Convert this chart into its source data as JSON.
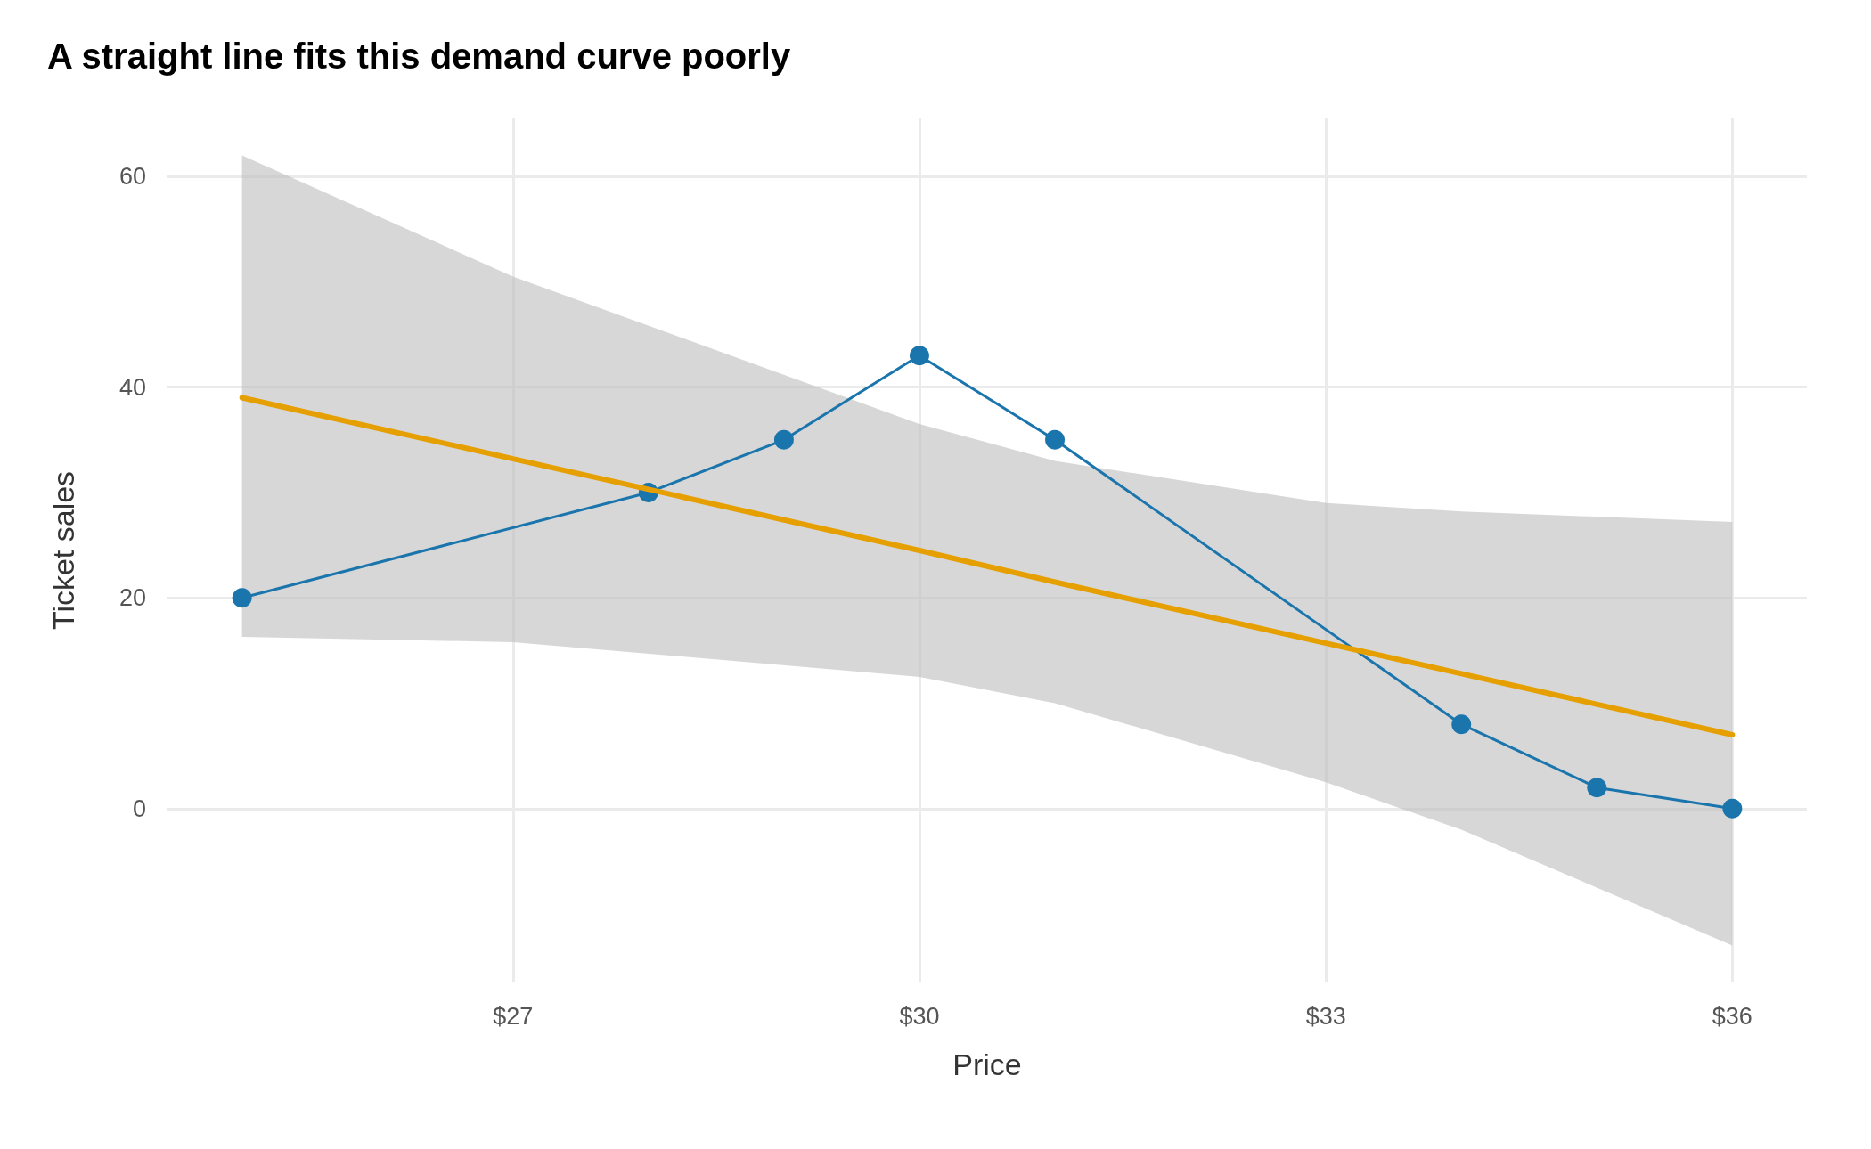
{
  "chart_data": {
    "type": "line",
    "title": "A straight line fits this demand curve poorly",
    "xlabel": "Price",
    "ylabel": "Ticket sales",
    "xlim": [
      24.45,
      36.55
    ],
    "xticks": [
      {
        "value": 27,
        "label": "$27"
      },
      {
        "value": 30,
        "label": "$30"
      },
      {
        "value": 33,
        "label": "$33"
      },
      {
        "value": 36,
        "label": "$36"
      }
    ],
    "ylim": [
      -16.5,
      65.5
    ],
    "yticks": [
      0,
      20,
      40,
      60
    ],
    "grid": true,
    "series": [
      {
        "x": [
          25,
          28,
          29,
          30,
          31,
          34,
          35,
          36
        ],
        "values": [
          20,
          30,
          35,
          43,
          35,
          8,
          2,
          0
        ],
        "color": "#1b75ad",
        "marker": "circle"
      },
      {
        "x": [
          25,
          27,
          30,
          31,
          33,
          34,
          36
        ],
        "values": [
          39,
          33.2,
          24.5,
          21.5,
          15.7,
          12.8,
          7
        ],
        "lower": [
          16.3,
          15.8,
          12.5,
          10,
          2.5,
          -2,
          -13
        ],
        "upper": [
          62,
          50.5,
          36.5,
          33,
          29,
          28.2,
          27.2
        ],
        "color": "#e69f00",
        "marker": "none"
      }
    ]
  }
}
